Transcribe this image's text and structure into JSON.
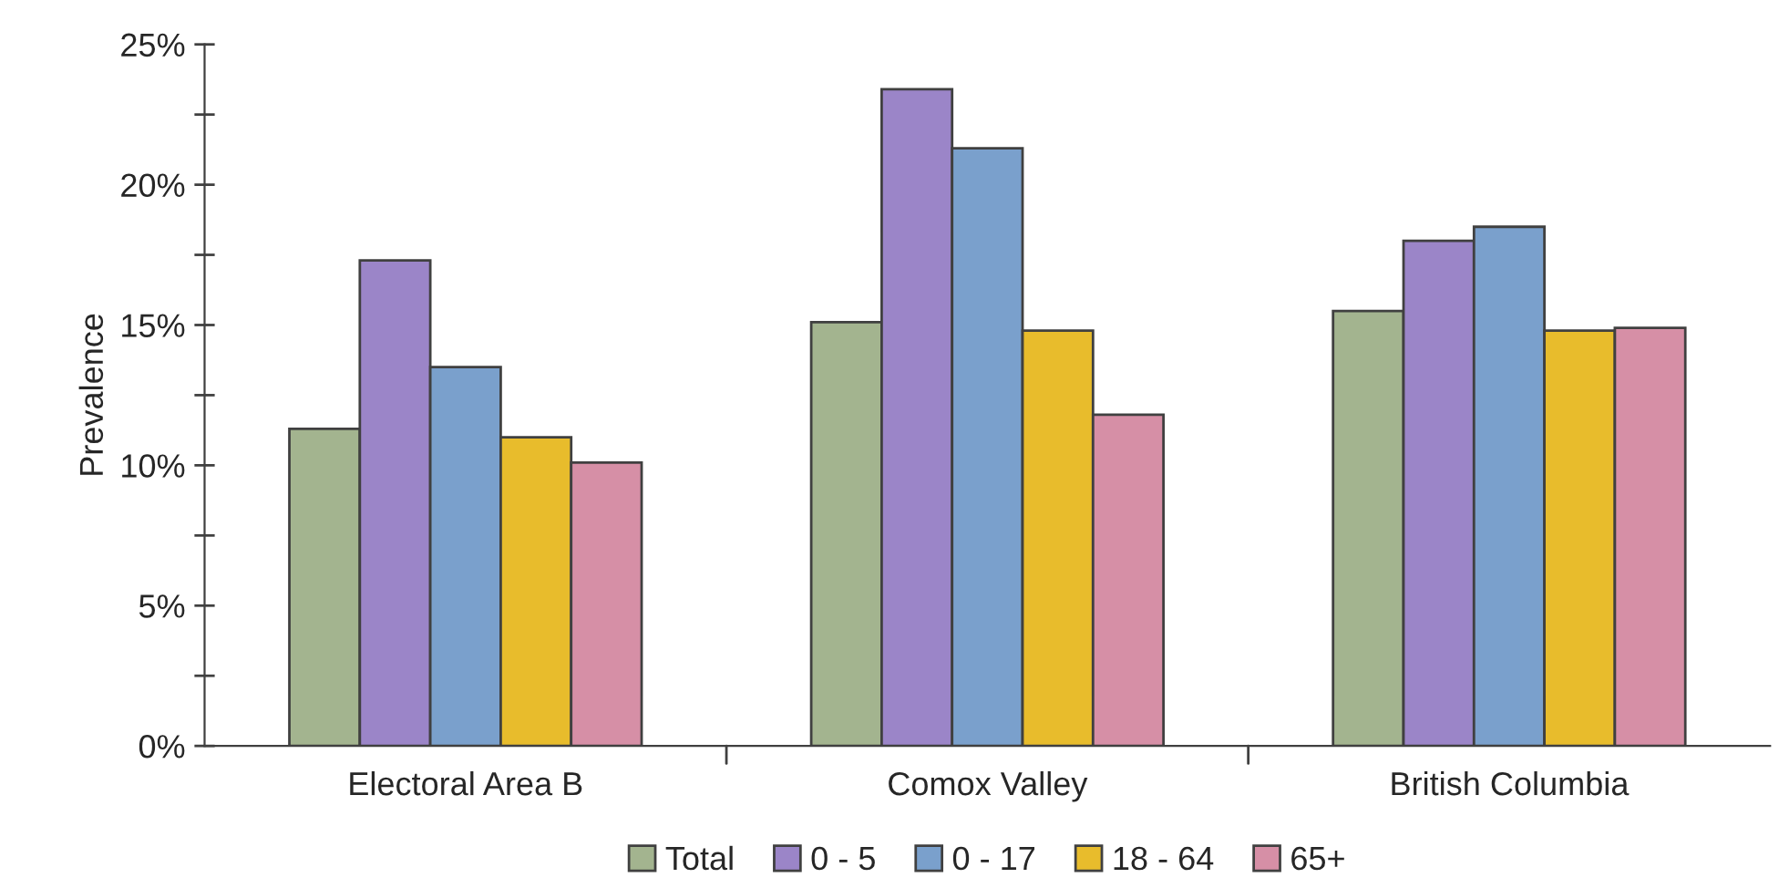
{
  "chart_data": {
    "type": "bar",
    "ylabel": "Prevalence",
    "categories": [
      "Electoral Area B",
      "Comox Valley",
      "British Columbia"
    ],
    "series": [
      {
        "name": "Total",
        "color": "#a3b48f",
        "values": [
          11.3,
          15.1,
          15.5
        ]
      },
      {
        "name": "0 - 5",
        "color": "#9b85c8",
        "values": [
          17.3,
          23.4,
          18.0
        ]
      },
      {
        "name": "0 - 17",
        "color": "#7aa0cc",
        "values": [
          13.5,
          21.3,
          18.5
        ]
      },
      {
        "name": "18 - 64",
        "color": "#e8bc2c",
        "values": [
          11.0,
          14.8,
          14.8
        ]
      },
      {
        "name": "65+",
        "color": "#d68fa6",
        "values": [
          10.1,
          11.8,
          14.9
        ]
      }
    ],
    "ylim": [
      0,
      25
    ],
    "yticks": [
      {
        "value": 0,
        "label": "0%"
      },
      {
        "value": 2.5,
        "label": null
      },
      {
        "value": 5,
        "label": "5%"
      },
      {
        "value": 7.5,
        "label": null
      },
      {
        "value": 10,
        "label": "10%"
      },
      {
        "value": 12.5,
        "label": null
      },
      {
        "value": 15,
        "label": "15%"
      },
      {
        "value": 17.5,
        "label": null
      },
      {
        "value": 20,
        "label": "20%"
      },
      {
        "value": 22.5,
        "label": null
      },
      {
        "value": 25,
        "label": "25%"
      }
    ],
    "grid": false,
    "legend": "bottom"
  }
}
